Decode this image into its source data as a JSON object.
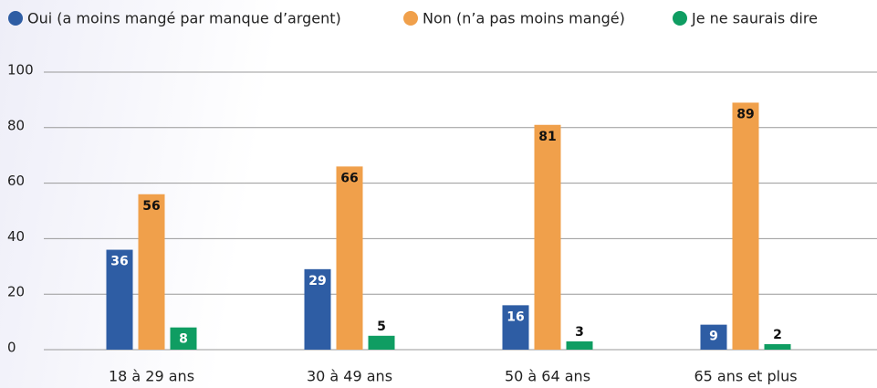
{
  "chart_data": {
    "type": "bar",
    "categories": [
      "18 à 29 ans",
      "30 à 49 ans",
      "50 à 64 ans",
      "65 ans et plus"
    ],
    "series": [
      {
        "name": "Oui (a moins mangé par manque d’argent)",
        "color": "#2e5da4",
        "values": [
          36,
          29,
          16,
          9
        ]
      },
      {
        "name": "Non (n’a pas moins mangé)",
        "color": "#f0a04b",
        "values": [
          56,
          66,
          81,
          89
        ]
      },
      {
        "name": "Je ne saurais dire",
        "color": "#0f9d62",
        "values": [
          8,
          5,
          3,
          2
        ]
      }
    ],
    "ylim": [
      0,
      100
    ],
    "yticks": [
      0,
      20,
      40,
      60,
      80,
      100
    ],
    "grid": true
  }
}
